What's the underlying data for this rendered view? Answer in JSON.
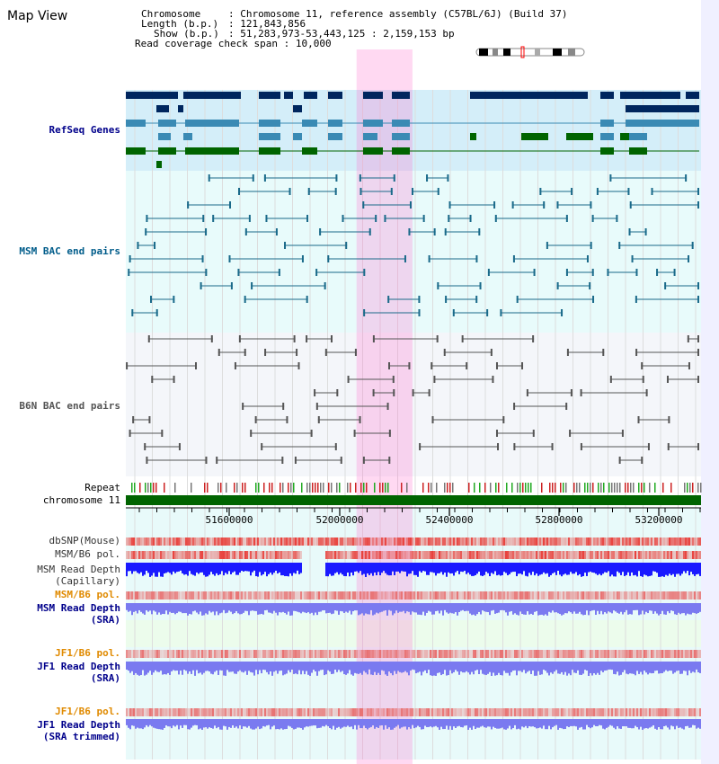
{
  "title": "Map View",
  "info": {
    "chromosome_key": "Chromosome",
    "chromosome_value": "Chromosome 11, reference assembly (C57BL/6J) (Build 37)",
    "length_key": "Length (b.p.)",
    "length_value": "121,843,856",
    "show_key": "Show (b.p.)",
    "show_value": "51,283,973-53,443,125 : 2,159,153 bp",
    "coverage_key": "Read coverage check span",
    "coverage_value": "10,000"
  },
  "view": {
    "start_bp": 51283973,
    "end_bp": 53443125,
    "highlight_start_bp": 52150000,
    "highlight_end_bp": 52360000
  },
  "axis_ticks": [
    "51600000",
    "52000000",
    "52400000",
    "52800000",
    "53200000"
  ],
  "tracks": {
    "refseq": {
      "label": "RefSeq Genes",
      "color": "#00008b"
    },
    "msm_bac": {
      "label": "MSM BAC end pairs",
      "color": "#005c8a"
    },
    "b6n_bac": {
      "label": "B6N BAC end pairs",
      "color": "#555555"
    },
    "repeat": {
      "label": "Repeat"
    },
    "chromosome": {
      "label": "chromosome 11"
    },
    "dbsnp": {
      "label": "dbSNP(Mouse)"
    },
    "msm_b6_pol": {
      "label": "MSM/B6 pol."
    },
    "msm_depth_cap": {
      "label1": "MSM Read Depth",
      "label2": "(Capillary)"
    },
    "msm_b6_pol2": {
      "label": "MSM/B6 pol."
    },
    "msm_depth_sra": {
      "label1": "MSM Read Depth",
      "label2": "(SRA)"
    },
    "jf1_b6_pol": {
      "label": "JF1/B6 pol."
    },
    "jf1_depth_sra": {
      "label1": "JF1 Read Depth",
      "label2": "(SRA)"
    },
    "jf1_b6_pol2": {
      "label": "JF1/B6 pol."
    },
    "jf1_depth_trim": {
      "label1": "JF1 Read Depth",
      "label2": "(SRA trimmed)"
    }
  },
  "colors": {
    "gene_dark": "#00265e",
    "gene_light": "#3a8ab4",
    "gene_green": "#006400",
    "msm_color": "#1a6a8a",
    "b6n_color": "#555555",
    "depth_blue": "#1a1aff",
    "depth_light": "#7a7af0",
    "snp_red": "#e8413c",
    "label_blue": "#00008b",
    "label_orange": "#e08a00"
  }
}
